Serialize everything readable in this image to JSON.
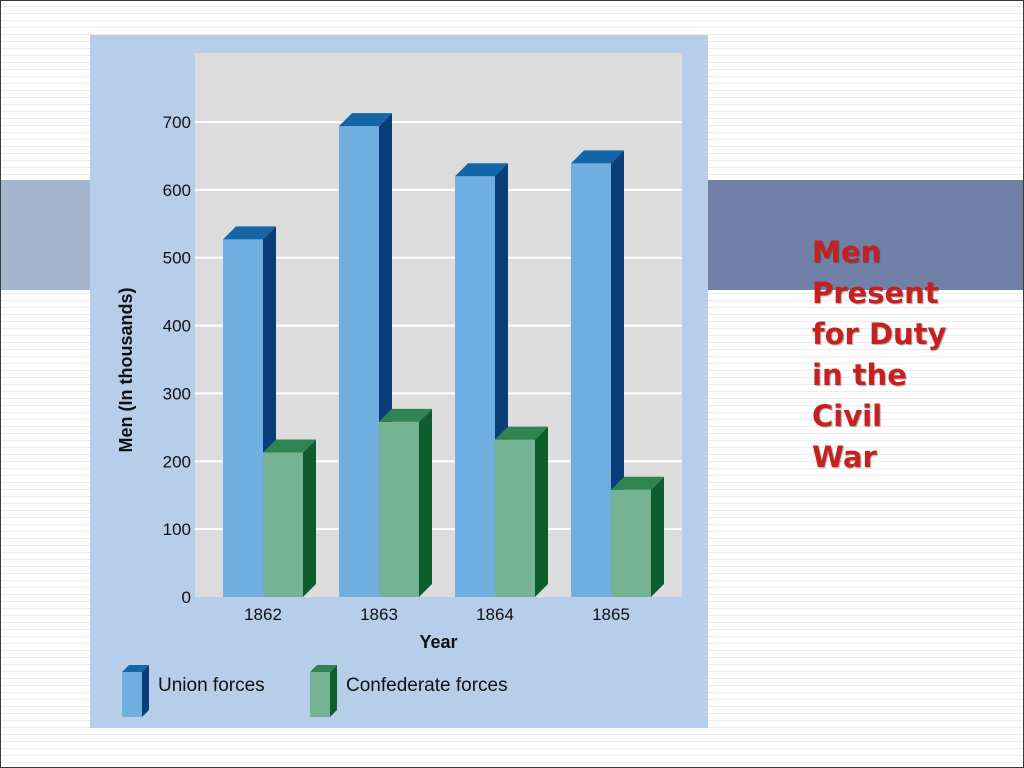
{
  "slide": {
    "title_lines": [
      "Men",
      "Present",
      "for Duty",
      "in the",
      "Civil",
      "War"
    ]
  },
  "colors": {
    "band_left": "#a3b6cd",
    "band_right": "#7180a6",
    "panel": "#b6ceea",
    "plot_bg": "#dcdcdc",
    "title": "#c8201e"
  },
  "chart_data": {
    "type": "bar",
    "style": "3d-grouped",
    "categories": [
      "1862",
      "1863",
      "1864",
      "1865"
    ],
    "series": [
      {
        "name": "Union forces",
        "values": [
          527,
          694,
          620,
          639
        ],
        "color": "#6faede",
        "side_color": "#0a3e78",
        "top_color": "#1466a8"
      },
      {
        "name": "Confederate forces",
        "values": [
          213,
          258,
          232,
          158
        ],
        "color": "#76b395",
        "side_color": "#0e5d2c",
        "top_color": "#2e8552"
      }
    ],
    "xlabel": "Year",
    "ylabel": "Men (In thousands)",
    "yticks": [
      0,
      100,
      200,
      300,
      400,
      500,
      600,
      700
    ],
    "ylim": [
      0,
      700
    ],
    "grid": true,
    "legend": "bottom"
  }
}
